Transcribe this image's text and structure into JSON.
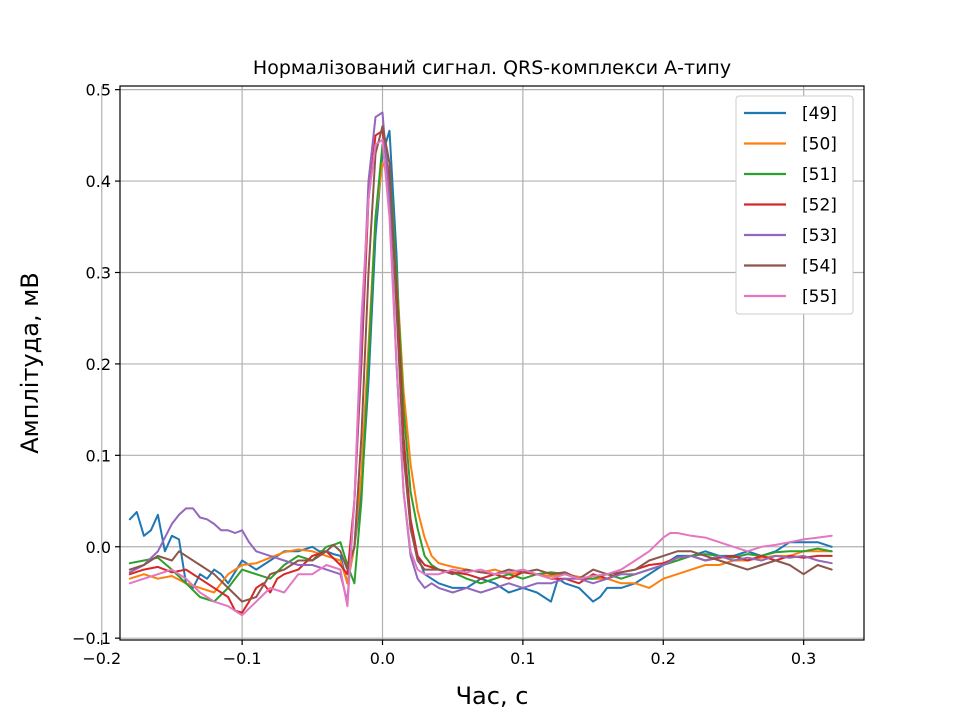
{
  "chart_data": {
    "type": "line",
    "title": "Нормалізований сигнал. QRS-комплекси А-типу",
    "xlabel": "Час, с",
    "ylabel": "Амплітуда, мВ",
    "xlim": [
      -0.187,
      0.343
    ],
    "ylim": [
      -0.102,
      0.504
    ],
    "xticks": [
      -0.2,
      -0.1,
      0.0,
      0.1,
      0.2,
      0.3
    ],
    "xtick_labels": [
      "−0.2",
      "−0.1",
      "0.0",
      "0.1",
      "0.2",
      "0.3"
    ],
    "yticks": [
      -0.1,
      0.0,
      0.1,
      0.2,
      0.3,
      0.4,
      0.5
    ],
    "ytick_labels": [
      "−0.1",
      "0.0",
      "0.1",
      "0.2",
      "0.3",
      "0.4",
      "0.5"
    ],
    "grid": true,
    "legend_position": "top-right",
    "series": [
      {
        "name": "[49]",
        "color": "#1f77b4",
        "x": [
          -0.18,
          -0.175,
          -0.17,
          -0.165,
          -0.16,
          -0.155,
          -0.15,
          -0.145,
          -0.14,
          -0.135,
          -0.13,
          -0.125,
          -0.12,
          -0.115,
          -0.11,
          -0.1,
          -0.09,
          -0.08,
          -0.07,
          -0.06,
          -0.05,
          -0.045,
          -0.04,
          -0.035,
          -0.03,
          -0.025,
          -0.02,
          -0.015,
          -0.01,
          -0.005,
          0.0,
          0.005,
          0.01,
          0.015,
          0.02,
          0.025,
          0.03,
          0.035,
          0.04,
          0.05,
          0.06,
          0.07,
          0.08,
          0.09,
          0.1,
          0.11,
          0.12,
          0.125,
          0.13,
          0.14,
          0.15,
          0.155,
          0.16,
          0.17,
          0.18,
          0.19,
          0.2,
          0.21,
          0.22,
          0.23,
          0.24,
          0.25,
          0.26,
          0.27,
          0.28,
          0.29,
          0.3,
          0.31,
          0.32
        ],
        "y": [
          0.03,
          0.038,
          0.012,
          0.018,
          0.035,
          -0.005,
          0.012,
          0.008,
          -0.04,
          -0.045,
          -0.03,
          -0.035,
          -0.025,
          -0.03,
          -0.04,
          -0.015,
          -0.025,
          -0.015,
          -0.005,
          -0.005,
          0.0,
          -0.005,
          -0.005,
          -0.008,
          -0.01,
          -0.04,
          0.0,
          0.06,
          0.18,
          0.34,
          0.43,
          0.455,
          0.32,
          0.11,
          0.02,
          -0.01,
          -0.03,
          -0.035,
          -0.04,
          -0.045,
          -0.045,
          -0.035,
          -0.04,
          -0.05,
          -0.045,
          -0.05,
          -0.06,
          -0.035,
          -0.04,
          -0.045,
          -0.06,
          -0.055,
          -0.045,
          -0.045,
          -0.04,
          -0.03,
          -0.02,
          -0.01,
          -0.01,
          -0.005,
          -0.01,
          -0.01,
          -0.005,
          -0.01,
          -0.005,
          0.005,
          0.005,
          0.005,
          0.0
        ]
      },
      {
        "name": "[50]",
        "color": "#ff7f0e",
        "x": [
          -0.18,
          -0.17,
          -0.16,
          -0.15,
          -0.14,
          -0.13,
          -0.12,
          -0.11,
          -0.1,
          -0.09,
          -0.08,
          -0.07,
          -0.06,
          -0.05,
          -0.04,
          -0.03,
          -0.025,
          -0.02,
          -0.015,
          -0.01,
          -0.005,
          0.0,
          0.005,
          0.01,
          0.015,
          0.02,
          0.025,
          0.03,
          0.035,
          0.04,
          0.05,
          0.06,
          0.07,
          0.08,
          0.09,
          0.1,
          0.11,
          0.12,
          0.13,
          0.14,
          0.15,
          0.16,
          0.17,
          0.18,
          0.19,
          0.2,
          0.21,
          0.22,
          0.23,
          0.24,
          0.25,
          0.26,
          0.27,
          0.28,
          0.29,
          0.3,
          0.31,
          0.32
        ],
        "y": [
          -0.035,
          -0.03,
          -0.035,
          -0.032,
          -0.04,
          -0.045,
          -0.05,
          -0.03,
          -0.02,
          -0.018,
          -0.012,
          -0.006,
          -0.003,
          -0.005,
          -0.01,
          -0.015,
          -0.04,
          0.0,
          0.08,
          0.22,
          0.36,
          0.42,
          0.405,
          0.3,
          0.17,
          0.09,
          0.04,
          0.01,
          -0.01,
          -0.018,
          -0.022,
          -0.025,
          -0.028,
          -0.025,
          -0.03,
          -0.028,
          -0.03,
          -0.032,
          -0.03,
          -0.033,
          -0.035,
          -0.035,
          -0.04,
          -0.04,
          -0.045,
          -0.035,
          -0.03,
          -0.025,
          -0.02,
          -0.02,
          -0.015,
          -0.015,
          -0.012,
          -0.01,
          -0.01,
          -0.005,
          -0.005,
          -0.005
        ]
      },
      {
        "name": "[51]",
        "color": "#2ca02c",
        "x": [
          -0.18,
          -0.17,
          -0.16,
          -0.15,
          -0.14,
          -0.13,
          -0.12,
          -0.11,
          -0.1,
          -0.09,
          -0.08,
          -0.07,
          -0.06,
          -0.05,
          -0.04,
          -0.035,
          -0.03,
          -0.025,
          -0.02,
          -0.015,
          -0.01,
          -0.005,
          0.0,
          0.005,
          0.01,
          0.015,
          0.02,
          0.025,
          0.03,
          0.035,
          0.04,
          0.05,
          0.06,
          0.07,
          0.08,
          0.09,
          0.1,
          0.11,
          0.12,
          0.13,
          0.14,
          0.15,
          0.16,
          0.17,
          0.18,
          0.19,
          0.2,
          0.21,
          0.22,
          0.23,
          0.24,
          0.25,
          0.26,
          0.27,
          0.28,
          0.29,
          0.3,
          0.31,
          0.32
        ],
        "y": [
          -0.018,
          -0.015,
          -0.012,
          -0.025,
          -0.04,
          -0.055,
          -0.06,
          -0.045,
          -0.025,
          -0.03,
          -0.035,
          -0.02,
          -0.01,
          -0.015,
          0.0,
          0.002,
          0.005,
          -0.02,
          -0.04,
          0.05,
          0.2,
          0.36,
          0.44,
          0.42,
          0.3,
          0.15,
          0.06,
          0.02,
          -0.01,
          -0.02,
          -0.025,
          -0.028,
          -0.035,
          -0.04,
          -0.035,
          -0.03,
          -0.035,
          -0.03,
          -0.028,
          -0.03,
          -0.035,
          -0.035,
          -0.03,
          -0.035,
          -0.03,
          -0.025,
          -0.02,
          -0.015,
          -0.01,
          -0.008,
          -0.01,
          -0.012,
          -0.008,
          -0.01,
          -0.006,
          -0.005,
          -0.005,
          -0.002,
          -0.005
        ]
      },
      {
        "name": "[52]",
        "color": "#d62728",
        "x": [
          -0.18,
          -0.17,
          -0.16,
          -0.15,
          -0.14,
          -0.13,
          -0.12,
          -0.11,
          -0.105,
          -0.1,
          -0.095,
          -0.09,
          -0.085,
          -0.08,
          -0.075,
          -0.07,
          -0.06,
          -0.05,
          -0.04,
          -0.03,
          -0.025,
          -0.02,
          -0.015,
          -0.01,
          -0.005,
          0.0,
          0.005,
          0.01,
          0.015,
          0.02,
          0.025,
          0.03,
          0.04,
          0.05,
          0.06,
          0.07,
          0.08,
          0.09,
          0.1,
          0.11,
          0.12,
          0.13,
          0.14,
          0.15,
          0.16,
          0.17,
          0.18,
          0.19,
          0.2,
          0.21,
          0.22,
          0.23,
          0.24,
          0.25,
          0.26,
          0.27,
          0.28,
          0.29,
          0.3,
          0.31,
          0.32
        ],
        "y": [
          -0.03,
          -0.025,
          -0.022,
          -0.028,
          -0.025,
          -0.035,
          -0.045,
          -0.055,
          -0.07,
          -0.072,
          -0.06,
          -0.045,
          -0.04,
          -0.05,
          -0.035,
          -0.03,
          -0.025,
          -0.01,
          -0.005,
          -0.02,
          -0.03,
          0.05,
          0.2,
          0.38,
          0.45,
          0.455,
          0.4,
          0.28,
          0.12,
          0.03,
          -0.01,
          -0.02,
          -0.025,
          -0.028,
          -0.03,
          -0.035,
          -0.03,
          -0.035,
          -0.028,
          -0.03,
          -0.035,
          -0.035,
          -0.04,
          -0.03,
          -0.035,
          -0.028,
          -0.025,
          -0.02,
          -0.018,
          -0.012,
          -0.01,
          -0.015,
          -0.012,
          -0.01,
          -0.015,
          -0.01,
          -0.015,
          -0.01,
          -0.012,
          -0.01,
          -0.01
        ]
      },
      {
        "name": "[53]",
        "color": "#9467bd",
        "x": [
          -0.18,
          -0.17,
          -0.16,
          -0.155,
          -0.15,
          -0.145,
          -0.14,
          -0.135,
          -0.13,
          -0.125,
          -0.12,
          -0.115,
          -0.11,
          -0.105,
          -0.1,
          -0.095,
          -0.09,
          -0.08,
          -0.07,
          -0.06,
          -0.05,
          -0.04,
          -0.03,
          -0.025,
          -0.02,
          -0.015,
          -0.01,
          -0.005,
          0.0,
          0.005,
          0.01,
          0.015,
          0.02,
          0.025,
          0.03,
          0.035,
          0.04,
          0.05,
          0.06,
          0.07,
          0.08,
          0.09,
          0.1,
          0.11,
          0.12,
          0.13,
          0.14,
          0.15,
          0.16,
          0.17,
          0.18,
          0.19,
          0.2,
          0.21,
          0.22,
          0.23,
          0.24,
          0.25,
          0.26,
          0.27,
          0.28,
          0.29,
          0.3,
          0.31,
          0.32
        ],
        "y": [
          -0.028,
          -0.02,
          -0.005,
          0.01,
          0.025,
          0.035,
          0.042,
          0.042,
          0.032,
          0.03,
          0.025,
          0.018,
          0.018,
          0.015,
          0.018,
          0.005,
          -0.005,
          -0.01,
          -0.015,
          -0.02,
          -0.02,
          -0.025,
          -0.03,
          -0.06,
          0.05,
          0.22,
          0.4,
          0.47,
          0.475,
          0.38,
          0.2,
          0.06,
          -0.01,
          -0.035,
          -0.045,
          -0.04,
          -0.045,
          -0.05,
          -0.045,
          -0.05,
          -0.045,
          -0.04,
          -0.045,
          -0.04,
          -0.04,
          -0.035,
          -0.035,
          -0.04,
          -0.035,
          -0.03,
          -0.03,
          -0.025,
          -0.02,
          -0.012,
          -0.01,
          -0.015,
          -0.01,
          -0.015,
          -0.012,
          -0.015,
          -0.01,
          -0.012,
          -0.01,
          -0.015,
          -0.018
        ]
      },
      {
        "name": "[54]",
        "color": "#8c564b",
        "x": [
          -0.18,
          -0.17,
          -0.16,
          -0.15,
          -0.145,
          -0.14,
          -0.13,
          -0.12,
          -0.11,
          -0.1,
          -0.09,
          -0.08,
          -0.07,
          -0.06,
          -0.05,
          -0.04,
          -0.035,
          -0.03,
          -0.025,
          -0.02,
          -0.015,
          -0.01,
          -0.005,
          0.0,
          0.005,
          0.01,
          0.015,
          0.02,
          0.025,
          0.03,
          0.04,
          0.05,
          0.06,
          0.07,
          0.08,
          0.09,
          0.1,
          0.11,
          0.12,
          0.13,
          0.14,
          0.15,
          0.16,
          0.17,
          0.18,
          0.19,
          0.2,
          0.21,
          0.22,
          0.23,
          0.24,
          0.25,
          0.26,
          0.27,
          0.28,
          0.29,
          0.3,
          0.31,
          0.32
        ],
        "y": [
          -0.025,
          -0.02,
          -0.01,
          -0.015,
          -0.005,
          -0.01,
          -0.02,
          -0.03,
          -0.045,
          -0.06,
          -0.055,
          -0.03,
          -0.025,
          -0.015,
          -0.015,
          -0.005,
          0.002,
          -0.005,
          -0.025,
          0.0,
          0.12,
          0.3,
          0.43,
          0.46,
          0.42,
          0.26,
          0.1,
          0.02,
          -0.015,
          -0.025,
          -0.025,
          -0.03,
          -0.025,
          -0.028,
          -0.03,
          -0.025,
          -0.028,
          -0.025,
          -0.03,
          -0.028,
          -0.035,
          -0.025,
          -0.03,
          -0.028,
          -0.025,
          -0.015,
          -0.01,
          -0.005,
          -0.005,
          -0.01,
          -0.015,
          -0.02,
          -0.025,
          -0.02,
          -0.015,
          -0.02,
          -0.03,
          -0.02,
          -0.025
        ]
      },
      {
        "name": "[55]",
        "color": "#e377c2",
        "x": [
          -0.18,
          -0.17,
          -0.16,
          -0.15,
          -0.14,
          -0.13,
          -0.12,
          -0.11,
          -0.1,
          -0.09,
          -0.08,
          -0.07,
          -0.06,
          -0.05,
          -0.04,
          -0.03,
          -0.025,
          -0.02,
          -0.015,
          -0.01,
          -0.005,
          0.0,
          0.005,
          0.01,
          0.015,
          0.02,
          0.025,
          0.03,
          0.04,
          0.05,
          0.06,
          0.07,
          0.08,
          0.09,
          0.1,
          0.11,
          0.12,
          0.13,
          0.14,
          0.15,
          0.16,
          0.17,
          0.18,
          0.19,
          0.2,
          0.205,
          0.21,
          0.22,
          0.23,
          0.24,
          0.25,
          0.26,
          0.27,
          0.28,
          0.29,
          0.3,
          0.31,
          0.32
        ],
        "y": [
          -0.04,
          -0.035,
          -0.03,
          -0.025,
          -0.035,
          -0.05,
          -0.06,
          -0.065,
          -0.075,
          -0.06,
          -0.045,
          -0.05,
          -0.03,
          -0.03,
          -0.02,
          -0.025,
          -0.065,
          0.05,
          0.25,
          0.38,
          0.44,
          0.445,
          0.36,
          0.2,
          0.06,
          -0.005,
          -0.025,
          -0.03,
          -0.03,
          -0.025,
          -0.028,
          -0.025,
          -0.03,
          -0.028,
          -0.025,
          -0.03,
          -0.035,
          -0.03,
          -0.035,
          -0.032,
          -0.03,
          -0.025,
          -0.015,
          -0.005,
          0.01,
          0.015,
          0.015,
          0.012,
          0.01,
          0.005,
          0.0,
          -0.005,
          0.0,
          0.002,
          0.005,
          0.008,
          0.01,
          0.012
        ]
      }
    ]
  }
}
